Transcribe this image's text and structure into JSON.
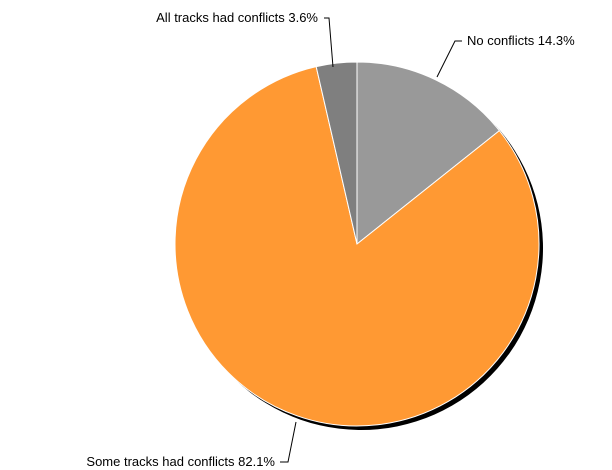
{
  "chart_data": {
    "type": "pie",
    "slices": [
      {
        "label": "No conflicts",
        "value": 14.3,
        "value_label": "14.3%",
        "color": "#999999",
        "shadow": "#6f6f6f"
      },
      {
        "label": "Some tracks had conflicts",
        "value": 82.1,
        "value_label": "82.1%",
        "color": "#ff9933",
        "shadow": "#c26f1f"
      },
      {
        "label": "All tracks had conflicts",
        "value": 3.6,
        "value_label": "3.6%",
        "color": "#7f7f7f",
        "shadow": "#5a5a5a"
      }
    ],
    "start": "12 o'clock",
    "direction": "clockwise",
    "legend": "none",
    "labels": "outside with leader lines"
  },
  "labels": {
    "no_conflicts": "No conflicts 14.3%",
    "some_conflicts": "Some tracks had conflicts 82.1%",
    "all_conflicts": "All tracks had conflicts 3.6%"
  }
}
